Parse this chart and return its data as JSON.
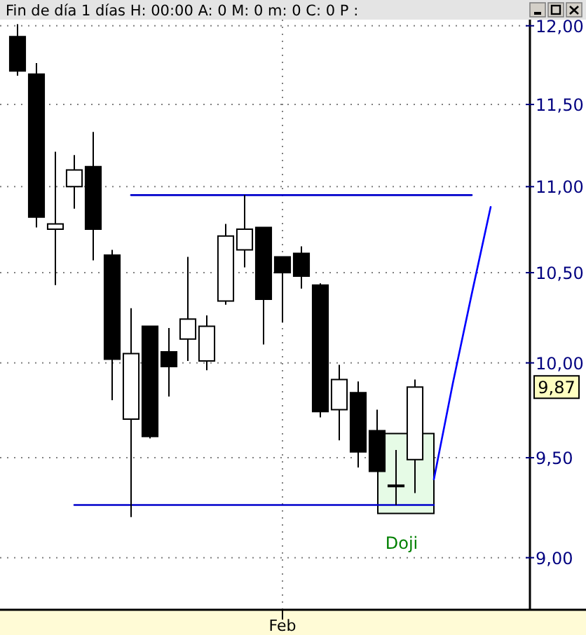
{
  "chart_data": {
    "type": "candlestick",
    "title": "Fin de día 1 días H: 00:00 A: 0 M: 0 m: 0 C: 0 P :",
    "categories": [
      null,
      null,
      null,
      null,
      null,
      null,
      null,
      null,
      null,
      null,
      null,
      null,
      null,
      null,
      "Feb",
      null,
      null,
      null,
      null,
      null,
      null,
      null,
      null,
      null,
      null,
      null,
      null
    ],
    "ohlc": [
      [
        11.93,
        12.01,
        11.68,
        11.71
      ],
      [
        11.69,
        11.76,
        10.76,
        10.82
      ],
      [
        10.75,
        11.21,
        10.43,
        10.78
      ],
      [
        11.0,
        11.19,
        10.87,
        11.1
      ],
      [
        11.12,
        11.33,
        10.57,
        10.75
      ],
      [
        10.6,
        10.63,
        9.8,
        10.02
      ],
      [
        9.7,
        10.3,
        9.2,
        10.05
      ],
      [
        10.2,
        10.2,
        9.6,
        9.61
      ],
      [
        10.06,
        10.19,
        9.82,
        9.98
      ],
      [
        10.13,
        10.59,
        10.01,
        10.24
      ],
      [
        10.01,
        10.26,
        9.96,
        10.2
      ],
      [
        10.34,
        10.78,
        10.32,
        10.71
      ],
      [
        10.63,
        10.95,
        10.53,
        10.75
      ],
      [
        10.76,
        10.76,
        10.1,
        10.35
      ],
      [
        10.59,
        10.59,
        10.22,
        10.5
      ],
      [
        10.61,
        10.65,
        10.41,
        10.48
      ],
      [
        10.43,
        10.44,
        9.71,
        9.74
      ],
      [
        9.75,
        9.99,
        9.59,
        9.91
      ],
      [
        9.84,
        9.9,
        9.45,
        9.53
      ],
      [
        9.64,
        9.75,
        9.43,
        9.43
      ],
      [
        9.36,
        9.54,
        9.26,
        9.36
      ],
      [
        9.49,
        9.91,
        9.32,
        9.87
      ],
      null,
      null,
      null,
      null,
      null
    ],
    "color": "#000000",
    "series": [
      {
        "type": "line",
        "values": [
          null,
          null,
          null,
          null,
          null,
          null,
          10.95,
          10.95,
          10.95,
          10.95,
          10.95,
          10.95,
          10.95,
          10.95,
          10.95,
          10.95,
          10.95,
          10.95,
          10.95,
          10.95,
          10.95,
          10.95,
          10.95,
          10.95,
          10.95,
          null,
          null
        ],
        "color": "#0000cc"
      },
      {
        "type": "line",
        "values": [
          null,
          null,
          null,
          9.26,
          9.26,
          9.26,
          9.26,
          9.26,
          9.26,
          9.26,
          9.26,
          9.26,
          9.26,
          9.26,
          9.26,
          9.26,
          9.26,
          9.26,
          9.26,
          9.26,
          9.26,
          9.26,
          9.26,
          null,
          null,
          null,
          null
        ],
        "color": "#0000cc"
      },
      {
        "type": "line",
        "values": [
          null,
          null,
          null,
          null,
          null,
          null,
          null,
          null,
          null,
          null,
          null,
          null,
          null,
          null,
          null,
          null,
          null,
          null,
          null,
          null,
          null,
          null,
          9.39,
          9.89,
          10.38,
          10.88,
          null
        ],
        "color": "#0000ff"
      }
    ],
    "ylim": [
      8.75,
      12.04
    ],
    "log": "y",
    "yticks": [
      {
        "value": 9,
        "label": "9,00"
      },
      {
        "value": 9.5,
        "label": "9,50"
      },
      {
        "value": 10,
        "label": "10,00"
      },
      {
        "value": 10.5,
        "label": "10,50"
      },
      {
        "value": 11,
        "label": "11,00"
      },
      {
        "value": 11.5,
        "label": "11,50"
      },
      {
        "value": 12,
        "label": "12,00"
      }
    ],
    "grid": true,
    "annotations": [
      "Doji",
      {
        "text": "9,87",
        "y": 9.87
      }
    ]
  }
}
